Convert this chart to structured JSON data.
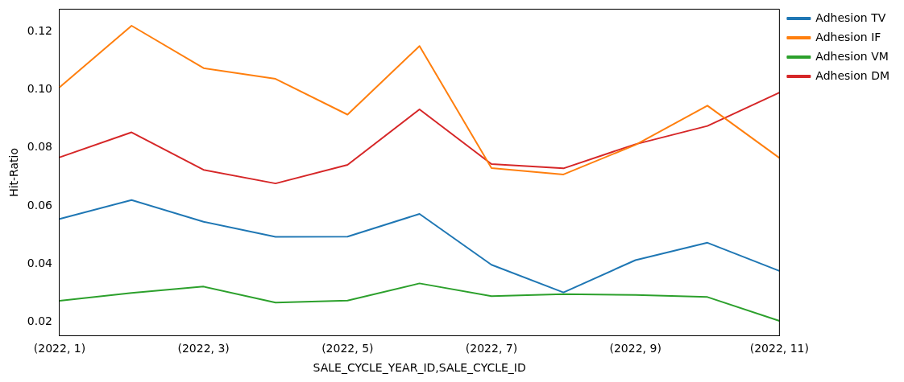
{
  "chart_data": {
    "type": "line",
    "xlabel": "SALE_CYCLE_YEAR_ID,SALE_CYCLE_ID",
    "ylabel": "Hit-Ratio",
    "categories": [
      "(2022, 1)",
      null,
      "(2022, 3)",
      null,
      "(2022, 5)",
      null,
      "(2022, 7)",
      null,
      "(2022, 9)",
      null,
      "(2022, 11)"
    ],
    "series": [
      {
        "name": "Adhesion TV",
        "color": "#1f77b4",
        "values": [
          0.0555,
          0.062,
          0.0545,
          0.0493,
          0.0494,
          0.0572,
          0.0397,
          0.0302,
          0.0413,
          0.0473,
          0.0376
        ]
      },
      {
        "name": "Adhesion IF",
        "color": "#ff7f0e",
        "values": [
          0.1008,
          0.122,
          0.1074,
          0.1037,
          0.0914,
          0.115,
          0.073,
          0.0708,
          0.081,
          0.0945,
          0.0765
        ]
      },
      {
        "name": "Adhesion VM",
        "color": "#2ca02c",
        "values": [
          0.0273,
          0.03,
          0.0322,
          0.0267,
          0.0274,
          0.0333,
          0.0289,
          0.0296,
          0.0293,
          0.0286,
          0.0204
        ]
      },
      {
        "name": "Adhesion DM",
        "color": "#d62728",
        "values": [
          0.0767,
          0.0853,
          0.0724,
          0.0677,
          0.0741,
          0.0932,
          0.0744,
          0.0729,
          0.0812,
          0.0875,
          0.099
        ]
      }
    ],
    "ylim": [
      0.0153,
      0.1277
    ],
    "yticks": [
      0.02,
      0.04,
      0.06,
      0.08,
      {
        "value": 0.1,
        "label": "0.10"
      },
      0.12
    ],
    "legend": "top right"
  }
}
